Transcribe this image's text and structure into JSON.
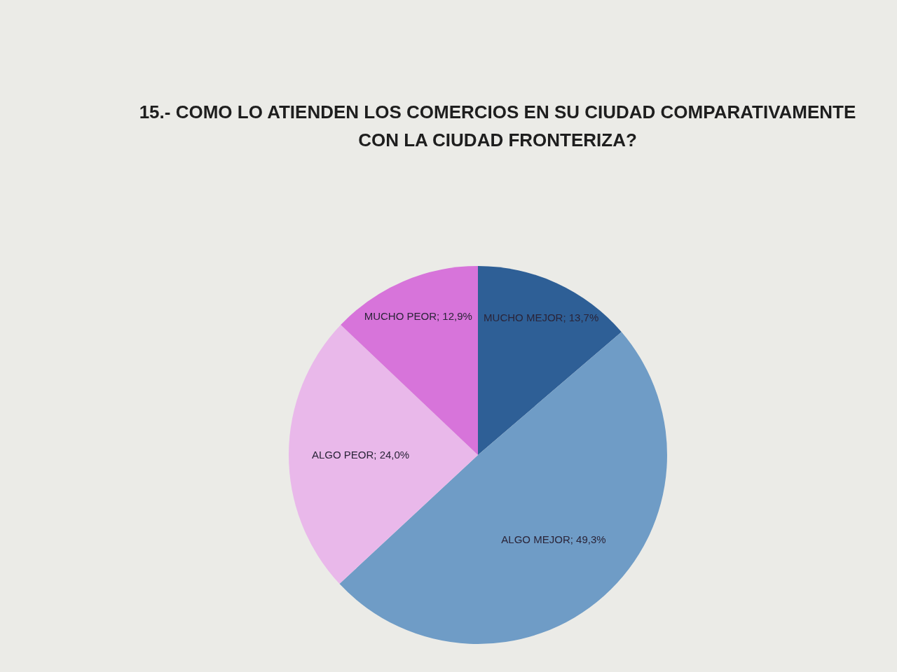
{
  "chart_data": {
    "type": "pie",
    "title": "15.- COMO LO ATIENDEN LOS COMERCIOS EN SU CIUDAD COMPARATIVAMENTE CON LA CIUDAD FRONTERIZA?",
    "categories": [
      "MUCHO MEJOR",
      "ALGO MEJOR",
      "ALGO PEOR",
      "MUCHO PEOR"
    ],
    "values": [
      13.7,
      49.3,
      24.0,
      12.9
    ],
    "colors": [
      "#2e5f96",
      "#6f9cc6",
      "#e9b8ea",
      "#d774da"
    ],
    "value_labels": [
      "13,7%",
      "49,3%",
      "24,0%",
      "12,9%"
    ]
  }
}
